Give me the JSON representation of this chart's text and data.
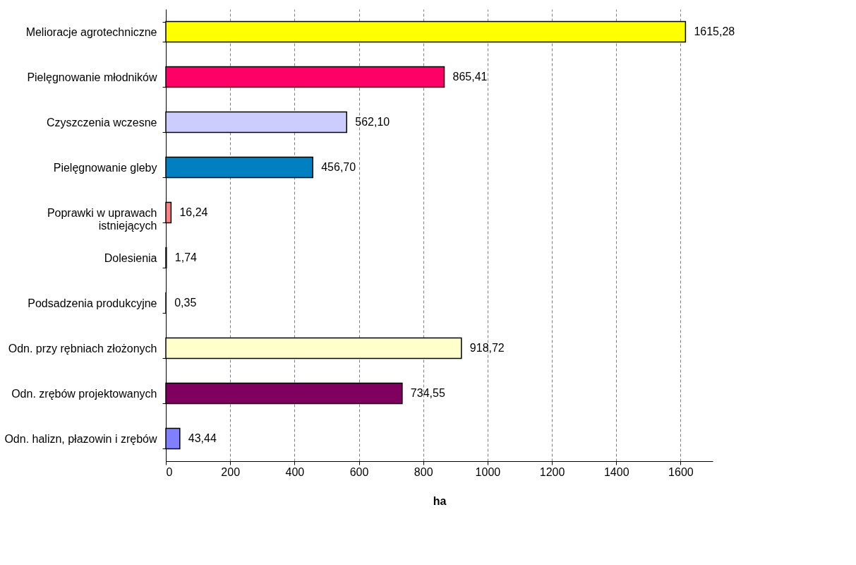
{
  "chart_data": {
    "type": "bar",
    "orientation": "horizontal",
    "xlabel": "ha",
    "categories": [
      "Melioracje agrotechniczne",
      "Pielęgnowanie młodników",
      "Czyszczenia wczesne",
      "Pielęgnowanie gleby",
      "Poprawki w uprawach\nistniejących",
      "Dolesienia",
      "Podsadzenia produkcyjne",
      "Odn. przy rębniach złożonych",
      "Odn. zrębów projektowanych",
      "Odn. halizn, płazowin i zrębów"
    ],
    "values": [
      1615.28,
      865.41,
      562.1,
      456.7,
      16.24,
      1.74,
      0.35,
      918.72,
      734.55,
      43.44
    ],
    "value_labels": [
      "1615,28",
      "865,41",
      "562,10",
      "456,70",
      "16,24",
      "1,74",
      "0,35",
      "918,72",
      "734,55",
      "43,44"
    ],
    "colors": [
      "#ffff00",
      "#ff0066",
      "#ccccff",
      "#0080c0",
      "#ff8080",
      "#ffffff",
      "#ffffff",
      "#ffffcc",
      "#800060",
      "#8080ff"
    ],
    "xlim": [
      0,
      1700
    ],
    "xticks": [
      0,
      200,
      400,
      600,
      800,
      1000,
      1200,
      1400,
      1600
    ],
    "grid": "x"
  }
}
